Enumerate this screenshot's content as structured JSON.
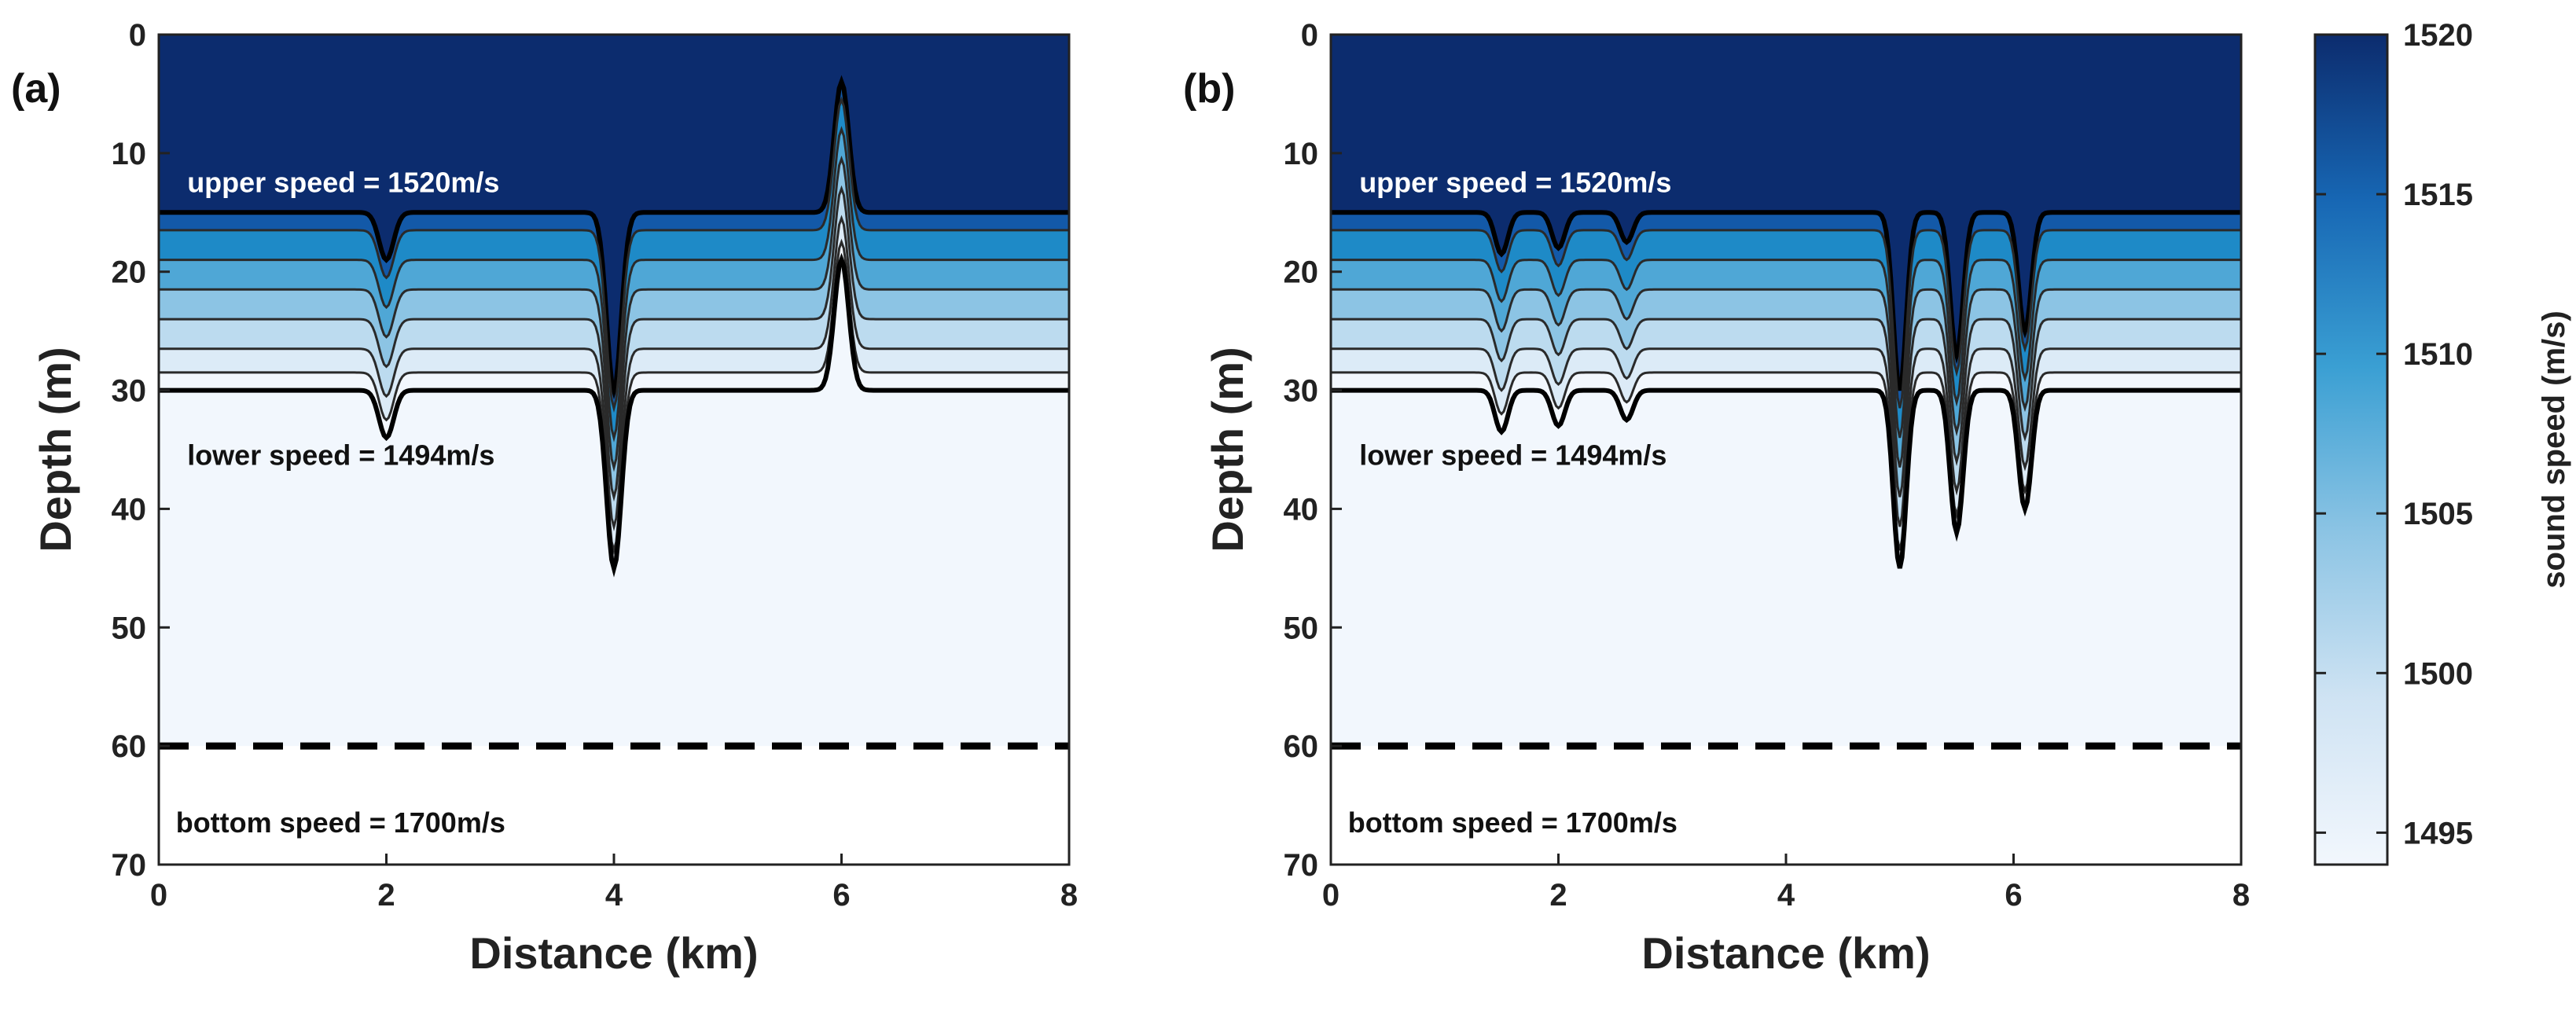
{
  "chart_data": [
    {
      "type": "heatmap",
      "panel_label": "(a)",
      "xlabel": "Distance (km)",
      "ylabel": "Depth (m)",
      "xlim": [
        0,
        8
      ],
      "ylim": [
        0,
        70
      ],
      "y_reversed": true,
      "xticks": [
        0,
        2,
        4,
        6,
        8
      ],
      "yticks": [
        0,
        10,
        20,
        30,
        40,
        50,
        60,
        70
      ],
      "base_thermocline": {
        "top_depth": 15,
        "bottom_depth": 30
      },
      "contour_base_depths": [
        15,
        16.5,
        19,
        21.5,
        24,
        26.5,
        28.5,
        30
      ],
      "internal_waves": [
        {
          "center_km": 2,
          "width_km": 0.09,
          "amplitude_m": 4
        },
        {
          "center_km": 4,
          "width_km": 0.09,
          "amplitude_m": 15
        },
        {
          "center_km": 6,
          "width_km": 0.09,
          "amplitude_m": -11
        }
      ],
      "seabed_depth": 60,
      "annotations": [
        {
          "text": "upper speed = 1520m/s",
          "x_km": 0.25,
          "depth": 12.5,
          "color": "#ffffff"
        },
        {
          "text": "lower speed = 1494m/s",
          "x_km": 0.25,
          "depth": 35.5,
          "color": "#111111"
        },
        {
          "text": "bottom speed = 1700m/s",
          "x_km": 0.15,
          "depth": 66.5,
          "color": "#111111"
        }
      ]
    },
    {
      "type": "heatmap",
      "panel_label": "(b)",
      "xlabel": "Distance (km)",
      "ylabel": "Depth (m)",
      "xlim": [
        0,
        8
      ],
      "ylim": [
        0,
        70
      ],
      "y_reversed": true,
      "xticks": [
        0,
        2,
        4,
        6,
        8
      ],
      "yticks": [
        0,
        10,
        20,
        30,
        40,
        50,
        60,
        70
      ],
      "base_thermocline": {
        "top_depth": 15,
        "bottom_depth": 30
      },
      "contour_base_depths": [
        15,
        16.5,
        19,
        21.5,
        24,
        26.5,
        28.5,
        30
      ],
      "internal_waves": [
        {
          "center_km": 1.5,
          "width_km": 0.08,
          "amplitude_m": 3.5
        },
        {
          "center_km": 2.0,
          "width_km": 0.08,
          "amplitude_m": 3
        },
        {
          "center_km": 2.6,
          "width_km": 0.08,
          "amplitude_m": 2.5
        },
        {
          "center_km": 5.0,
          "width_km": 0.08,
          "amplitude_m": 15
        },
        {
          "center_km": 5.5,
          "width_km": 0.08,
          "amplitude_m": 12
        },
        {
          "center_km": 6.1,
          "width_km": 0.08,
          "amplitude_m": 10
        }
      ],
      "seabed_depth": 60,
      "annotations": [
        {
          "text": "upper speed = 1520m/s",
          "x_km": 0.25,
          "depth": 12.5,
          "color": "#ffffff"
        },
        {
          "text": "lower speed = 1494m/s",
          "x_km": 0.25,
          "depth": 35.5,
          "color": "#111111"
        },
        {
          "text": "bottom speed = 1700m/s",
          "x_km": 0.15,
          "depth": 66.5,
          "color": "#111111"
        }
      ]
    }
  ],
  "colorbar": {
    "label": "sound speed (m/s)",
    "min": 1494,
    "max": 1520,
    "ticks": [
      1495,
      1500,
      1505,
      1510,
      1515,
      1520
    ]
  },
  "colors": {
    "upper_water": "#0c2c6e",
    "lower_water": "#f2f7fd",
    "bottom": "#ffffff",
    "layer_fills": [
      "#0c2c6e",
      "#1359a8",
      "#1e8ac7",
      "#4fa7d6",
      "#8cc4e4",
      "#bcdbef",
      "#dcebf7",
      "#f2f7fd"
    ]
  }
}
